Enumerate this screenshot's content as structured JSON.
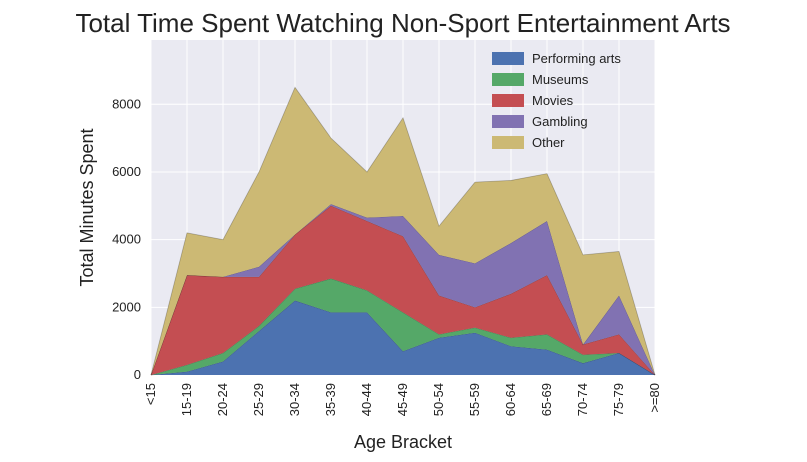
{
  "chart_data": {
    "type": "area",
    "stacked": true,
    "title": "Total Time Spent Watching Non-Sport Entertainment Arts",
    "xlabel": "Age Bracket",
    "ylabel": "Total Minutes Spent",
    "categories": [
      "<15",
      "15-19",
      "20-24",
      "25-29",
      "30-34",
      "35-39",
      "40-44",
      "45-49",
      "50-54",
      "55-59",
      "60-64",
      "65-69",
      "70-74",
      "75-79",
      ">=80"
    ],
    "ylim": [
      0,
      9900
    ],
    "yticks": [
      0,
      2000,
      4000,
      6000,
      8000
    ],
    "grid": true,
    "legend_position": "top-right",
    "series": [
      {
        "name": "Performing arts",
        "color": "#4c72b0",
        "values": [
          0,
          100,
          400,
          1300,
          2200,
          1850,
          1850,
          700,
          1100,
          1250,
          850,
          750,
          350,
          650,
          0
        ]
      },
      {
        "name": "Museums",
        "color": "#55a868",
        "values": [
          0,
          200,
          250,
          150,
          350,
          1000,
          650,
          1150,
          100,
          150,
          250,
          450,
          250,
          0,
          0
        ]
      },
      {
        "name": "Movies",
        "color": "#c44e52",
        "values": [
          0,
          2650,
          2250,
          1450,
          1600,
          2150,
          2050,
          2250,
          1150,
          600,
          1300,
          1750,
          300,
          550,
          0
        ]
      },
      {
        "name": "Gambling",
        "color": "#8172b2",
        "values": [
          0,
          0,
          0,
          300,
          0,
          50,
          100,
          600,
          1200,
          1300,
          1500,
          1600,
          0,
          1150,
          0
        ]
      },
      {
        "name": "Other",
        "color": "#ccb974",
        "values": [
          0,
          1250,
          1100,
          2800,
          4350,
          1950,
          1350,
          2900,
          850,
          2400,
          1850,
          1400,
          2650,
          1300,
          0
        ]
      }
    ]
  }
}
